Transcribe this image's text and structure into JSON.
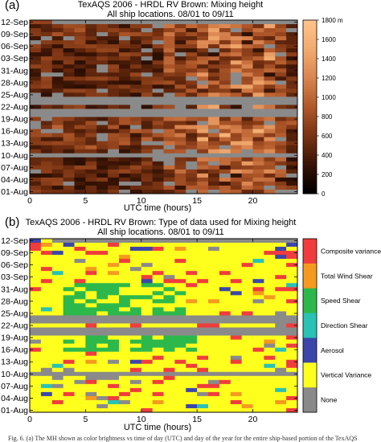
{
  "figure": {
    "caption": "Fig. 6. (a) The MH shown as color brightness vs time of day (UTC) and day of the year for the entire ship-based portion of the TexAQS"
  },
  "chart_data": [
    {
      "type": "heatmap",
      "panel_label": "(a)",
      "title": "TexAQS 2006 - HRDL RV Brown:  Mixing height",
      "subtitle": "All ship locations. 08/01 to 09/11",
      "xlabel": "UTC time (hours)",
      "ylabel": "",
      "xlim": [
        0,
        24
      ],
      "x_ticks": [
        0,
        5,
        10,
        15,
        20
      ],
      "y_ticks": [
        "12-Sep",
        "09-Sep",
        "06-Sep",
        "03-Sep",
        "31-Aug",
        "28-Aug",
        "25-Aug",
        "22-Aug",
        "19-Aug",
        "16-Aug",
        "13-Aug",
        "10-Aug",
        "07-Aug",
        "04-Aug",
        "01-Aug"
      ],
      "colorbar": {
        "label_unit": "m",
        "min": 0,
        "max": 1800,
        "ticks": [
          "1800 m",
          "1600",
          "1400",
          "1200",
          "1000",
          "800",
          "600",
          "400",
          "200",
          "0"
        ],
        "colors": [
          "#000000",
          "#3a1405",
          "#7a3312",
          "#b0582a",
          "#d9844f",
          "#f2aa6e",
          "#ffc38a"
        ]
      },
      "missing_color": "#8a8a8a",
      "grid": false
    },
    {
      "type": "heatmap",
      "panel_label": "(b)",
      "title": "TexAQS 2006 - HRDL RV Brown:  Type of data used for Mixing height",
      "subtitle": "All ship locations. 08/01 to 09/11",
      "xlabel": "UTC time (hours)",
      "ylabel": "",
      "xlim": [
        0,
        24
      ],
      "x_ticks": [
        0,
        5,
        10,
        15,
        20
      ],
      "y_ticks": [
        "12-Sep",
        "09-Sep",
        "06-Sep",
        "03-Sep",
        "31-Aug",
        "28-Aug",
        "25-Aug",
        "22-Aug",
        "19-Aug",
        "16-Aug",
        "13-Aug",
        "10-Aug",
        "07-Aug",
        "04-Aug",
        "01-Aug"
      ],
      "categories": [
        {
          "name": "Composite variance",
          "color": "#f03c3c"
        },
        {
          "name": "Total Wind Shear",
          "color": "#f59a1e"
        },
        {
          "name": "Speed Shear",
          "color": "#2db84b"
        },
        {
          "name": "Direction Shear",
          "color": "#29c2b4"
        },
        {
          "name": "Aerosol",
          "color": "#3c46a8"
        },
        {
          "name": "Vertical Variance",
          "color": "#ffff1e"
        },
        {
          "name": "None",
          "color": "#8a8a8a"
        }
      ],
      "grid": false
    }
  ]
}
